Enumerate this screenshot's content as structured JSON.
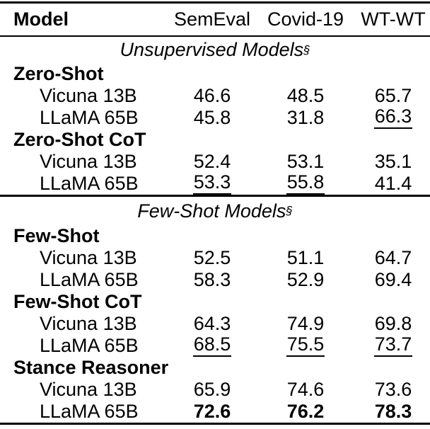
{
  "table": {
    "columns": [
      "Model",
      "SemEval",
      "Covid-19",
      "WT-WT"
    ],
    "sections": [
      {
        "title": "Unsupervised Models",
        "sup": "§",
        "groups": [
          {
            "name": "Zero-Shot",
            "rows": [
              {
                "model": "Vicuna 13B",
                "cells": [
                  {
                    "v": "46.6",
                    "s": "normal"
                  },
                  {
                    "v": "48.5",
                    "s": "normal"
                  },
                  {
                    "v": "65.7",
                    "s": "normal"
                  }
                ]
              },
              {
                "model": "LLaMA 65B",
                "cells": [
                  {
                    "v": "45.8",
                    "s": "normal"
                  },
                  {
                    "v": "31.8",
                    "s": "normal"
                  },
                  {
                    "v": "66.3",
                    "s": "underline"
                  }
                ]
              }
            ]
          },
          {
            "name": "Zero-Shot CoT",
            "rows": [
              {
                "model": "Vicuna 13B",
                "cells": [
                  {
                    "v": "52.4",
                    "s": "normal"
                  },
                  {
                    "v": "53.1",
                    "s": "normal"
                  },
                  {
                    "v": "35.1",
                    "s": "normal"
                  }
                ]
              },
              {
                "model": "LLaMA 65B",
                "cells": [
                  {
                    "v": "53.3",
                    "s": "underline"
                  },
                  {
                    "v": "55.8",
                    "s": "underline"
                  },
                  {
                    "v": "41.4",
                    "s": "normal"
                  }
                ]
              }
            ]
          }
        ]
      },
      {
        "title": "Few-Shot Models",
        "sup": "§",
        "groups": [
          {
            "name": "Few-Shot",
            "rows": [
              {
                "model": "Vicuna 13B",
                "cells": [
                  {
                    "v": "52.5",
                    "s": "normal"
                  },
                  {
                    "v": "51.1",
                    "s": "normal"
                  },
                  {
                    "v": "64.7",
                    "s": "normal"
                  }
                ]
              },
              {
                "model": "LLaMA 65B",
                "cells": [
                  {
                    "v": "58.3",
                    "s": "normal"
                  },
                  {
                    "v": "52.9",
                    "s": "normal"
                  },
                  {
                    "v": "69.4",
                    "s": "normal"
                  }
                ]
              }
            ]
          },
          {
            "name": "Few-Shot CoT",
            "rows": [
              {
                "model": "Vicuna 13B",
                "cells": [
                  {
                    "v": "64.3",
                    "s": "normal"
                  },
                  {
                    "v": "74.9",
                    "s": "normal"
                  },
                  {
                    "v": "69.8",
                    "s": "normal"
                  }
                ]
              },
              {
                "model": "LLaMA 65B",
                "cells": [
                  {
                    "v": "68.5",
                    "s": "underline"
                  },
                  {
                    "v": "75.5",
                    "s": "underline"
                  },
                  {
                    "v": "73.7",
                    "s": "underline"
                  }
                ]
              }
            ]
          },
          {
            "name": "Stance Reasoner",
            "rows": [
              {
                "model": "Vicuna 13B",
                "cells": [
                  {
                    "v": "65.9",
                    "s": "normal"
                  },
                  {
                    "v": "74.6",
                    "s": "normal"
                  },
                  {
                    "v": "73.6",
                    "s": "normal"
                  }
                ]
              },
              {
                "model": "LLaMA 65B",
                "cells": [
                  {
                    "v": "72.6",
                    "s": "bold"
                  },
                  {
                    "v": "76.2",
                    "s": "bold"
                  },
                  {
                    "v": "78.3",
                    "s": "bold"
                  }
                ]
              }
            ]
          }
        ]
      }
    ]
  }
}
